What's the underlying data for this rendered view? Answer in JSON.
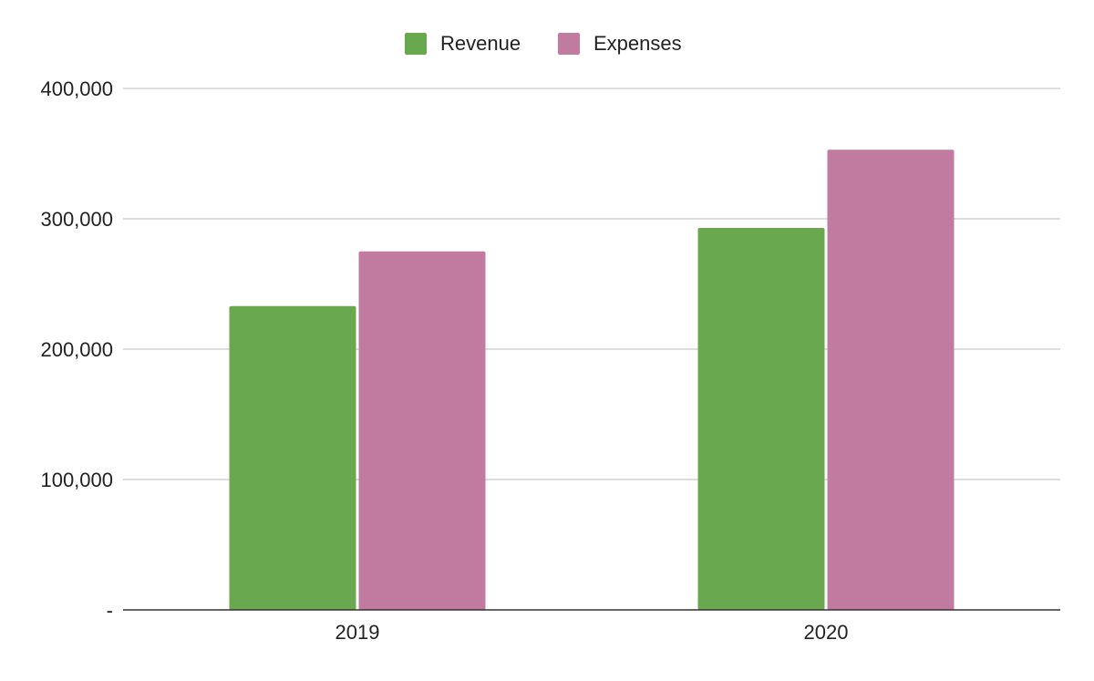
{
  "chart_data": {
    "type": "bar",
    "title": "",
    "xlabel": "",
    "ylabel": "",
    "categories": [
      "2019",
      "2020"
    ],
    "series": [
      {
        "name": "Revenue",
        "values": [
          233000,
          293000
        ],
        "color": "#6aa84f"
      },
      {
        "name": "Expenses",
        "values": [
          275000,
          353000
        ],
        "color": "#c27ba0"
      }
    ],
    "ylim": [
      0,
      400000
    ],
    "yticks": [
      0,
      100000,
      200000,
      300000,
      400000
    ],
    "ytick_labels": [
      "-",
      "100,000",
      "200,000",
      "300,000",
      "400,000"
    ],
    "grid": true,
    "legend_position": "top-center"
  },
  "colors": {
    "gridline": "#c6c6c6",
    "baseline": "#333333",
    "text": "#222222"
  }
}
